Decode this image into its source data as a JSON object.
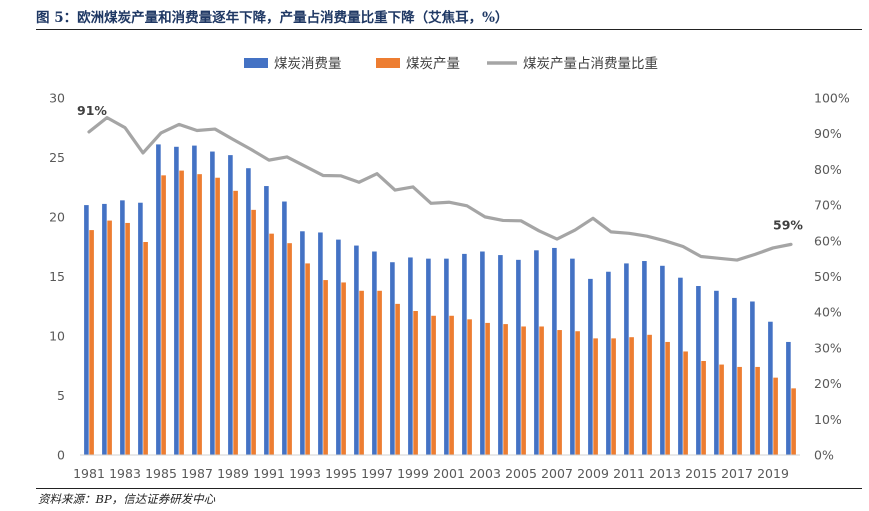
{
  "header": {
    "title": "图 5：欧洲煤炭产量和消费量逐年下降，产量占消费量比重下降（艾焦耳，%）"
  },
  "footer": {
    "source": "资料来源：BP，信达证券研发中心"
  },
  "chart_data": {
    "type": "bar",
    "title": "",
    "xlabel": "",
    "ylabel": "",
    "x": [
      1981,
      1982,
      1983,
      1984,
      1985,
      1986,
      1987,
      1988,
      1989,
      1990,
      1991,
      1992,
      1993,
      1994,
      1995,
      1996,
      1997,
      1998,
      1999,
      2000,
      2001,
      2002,
      2003,
      2004,
      2005,
      2006,
      2007,
      2008,
      2009,
      2010,
      2011,
      2012,
      2013,
      2014,
      2015,
      2016,
      2017,
      2018,
      2019,
      2020
    ],
    "x_tick_labels": [
      "1981",
      "1983",
      "1985",
      "1987",
      "1989",
      "1991",
      "1993",
      "1995",
      "1997",
      "1999",
      "2001",
      "2003",
      "2005",
      "2007",
      "2009",
      "2011",
      "2013",
      "2015",
      "2017",
      "2019"
    ],
    "ylim": [
      0,
      30
    ],
    "y_ticks": [
      0,
      5,
      10,
      15,
      20,
      25,
      30
    ],
    "y2lim": [
      0,
      100
    ],
    "y2_ticks": [
      0,
      10,
      20,
      30,
      40,
      50,
      60,
      70,
      80,
      90,
      100
    ],
    "y2_unit": "%",
    "grid": false,
    "legend_position": "top-center",
    "series": [
      {
        "name": "煤炭消费量",
        "type": "bar",
        "axis": "left",
        "color": "#4472c4",
        "values": [
          21.0,
          21.1,
          21.4,
          21.2,
          26.1,
          25.9,
          26.0,
          25.5,
          25.2,
          24.1,
          22.6,
          21.3,
          18.8,
          18.7,
          18.1,
          17.6,
          17.1,
          16.2,
          16.6,
          16.5,
          16.5,
          16.9,
          17.1,
          16.8,
          16.4,
          17.2,
          17.4,
          16.5,
          14.8,
          15.4,
          16.1,
          16.3,
          15.9,
          14.9,
          14.2,
          13.8,
          13.2,
          12.9,
          11.2,
          9.5
        ]
      },
      {
        "name": "煤炭产量",
        "type": "bar",
        "axis": "left",
        "color": "#ed7d31",
        "values": [
          18.9,
          19.7,
          19.5,
          17.9,
          23.5,
          23.9,
          23.6,
          23.3,
          22.2,
          20.6,
          18.6,
          17.8,
          16.1,
          14.7,
          14.5,
          13.8,
          13.8,
          12.7,
          12.1,
          11.7,
          11.7,
          11.4,
          11.1,
          11.0,
          10.8,
          10.8,
          10.5,
          10.4,
          9.8,
          9.8,
          9.9,
          10.1,
          9.5,
          8.7,
          7.9,
          7.6,
          7.4,
          7.4,
          6.5,
          5.6
        ]
      },
      {
        "name": "煤炭产量占消费量比重",
        "type": "line",
        "axis": "right",
        "color": "#a5a5a5",
        "values": [
          90.5,
          94.5,
          91.7,
          84.6,
          90.2,
          92.6,
          90.9,
          91.3,
          88.4,
          85.6,
          82.6,
          83.5,
          80.9,
          78.3,
          78.2,
          76.4,
          78.8,
          74.2,
          75.1,
          70.5,
          70.8,
          69.8,
          66.7,
          65.7,
          65.6,
          62.8,
          60.5,
          63.0,
          66.3,
          62.5,
          62.1,
          61.3,
          60.0,
          58.4,
          55.6,
          55.1,
          54.6,
          56.2,
          58.0,
          59.0
        ]
      }
    ],
    "annotations": [
      {
        "x": 1981,
        "text": "91%"
      },
      {
        "x": 2020,
        "text": "59%"
      }
    ]
  }
}
